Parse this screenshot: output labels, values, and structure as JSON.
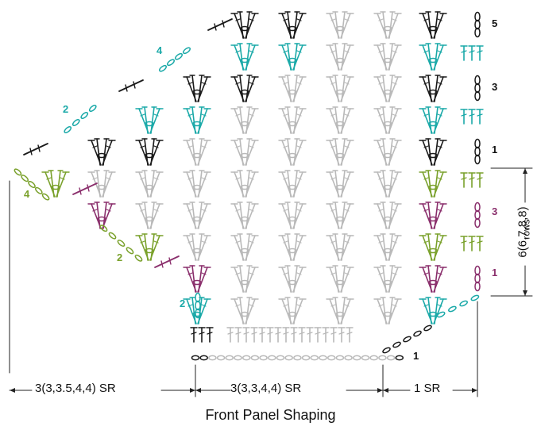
{
  "caption": "Front Panel Shaping",
  "dimensions": {
    "left_span": "3(3,3.5,4,4) SR",
    "middle_span": "3(3,3,4,4) SR",
    "right_span": "1 SR",
    "vertical": "6(6,7,8,8)",
    "vertical_unit": "rows"
  },
  "right_row_numbers": [
    "5",
    "3",
    "1",
    "3",
    "1"
  ],
  "edge_row_numbers": [
    "1",
    "2",
    "2",
    "4",
    "2",
    "4"
  ],
  "colors": {
    "base_rows": "#b9b9b9",
    "dark_rows": "#1a1a1a",
    "teal_rows": "#1aa9a8",
    "green_rows": "#7aa12c",
    "purple_rows": "#8a2f6c",
    "dim_lines": "#222222"
  }
}
